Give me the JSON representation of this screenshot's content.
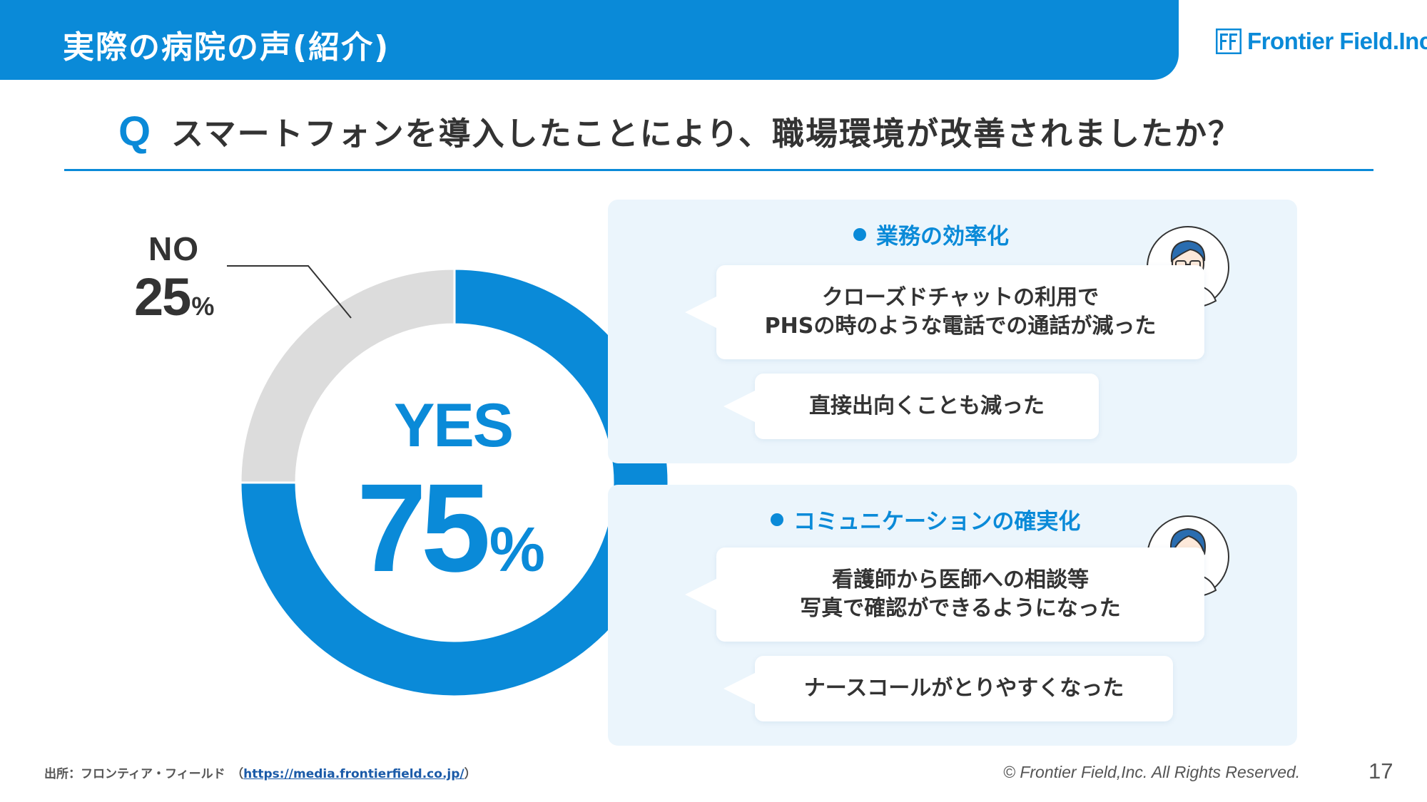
{
  "header": {
    "title": "実際の病院の声(紹介)",
    "brand_color": "#0a8ad8",
    "logo_text": "Frontier Field.Inc."
  },
  "question": {
    "mark": "Q",
    "text": "スマートフォンを導入したことにより、職場環境が改善されましたか？"
  },
  "chart_data": {
    "type": "pie",
    "variant": "donut",
    "categories": [
      "YES",
      "NO"
    ],
    "values": [
      75,
      25
    ],
    "unit": "%",
    "colors": [
      "#0a8ad8",
      "#dcdcdc"
    ],
    "labels": {
      "yes_label": "YES",
      "yes_value": "75",
      "no_label": "NO",
      "no_value": "25",
      "pct": "%"
    }
  },
  "panels": [
    {
      "title": "業務の効率化",
      "avatar": "male-doctor-glasses-icon",
      "bubbles": [
        {
          "lines": [
            "クローズドチャットの利用で",
            "PHSの時のような電話での通話が減った"
          ]
        },
        {
          "lines": [
            "直接出向くことも減った"
          ]
        }
      ]
    },
    {
      "title": "コミュニケーションの確実化",
      "avatar": "female-nurse-headset-icon",
      "bubbles": [
        {
          "lines": [
            "看護師から医師への相談等",
            "写真で確認ができるようになった"
          ]
        },
        {
          "lines": [
            "ナースコールがとりやすくなった"
          ]
        }
      ]
    }
  ],
  "footer": {
    "source_prefix": "出所：フロンティア・フィールド　（",
    "source_link": "https://media.frontierfield.co.jp/",
    "source_suffix": "）",
    "copyright": "© Frontier Field,Inc. All Rights Reserved.",
    "page_number": "17"
  }
}
